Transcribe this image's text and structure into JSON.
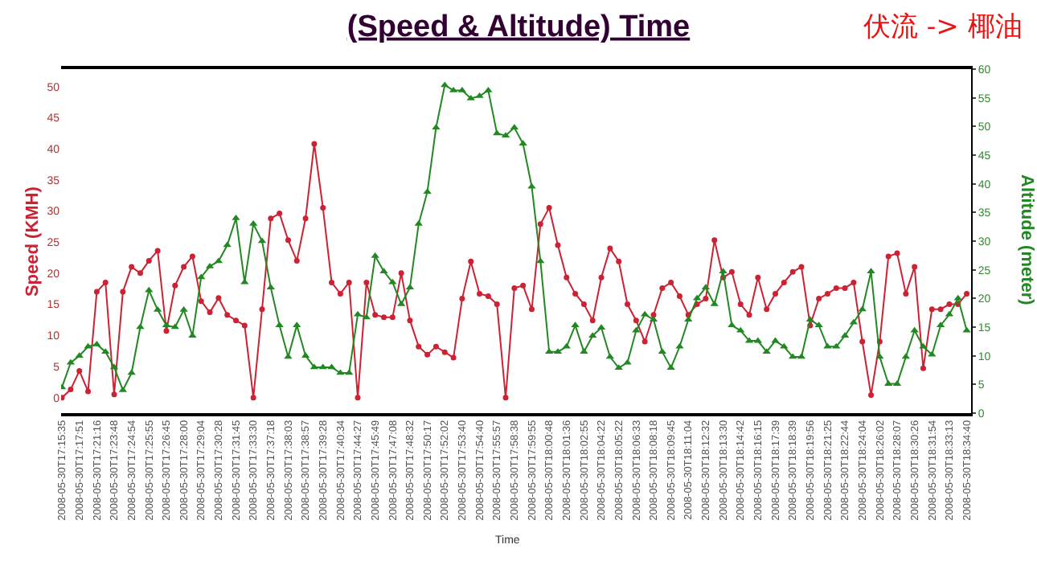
{
  "chart_data": {
    "type": "line",
    "title": "(Speed & Altitude) Time",
    "xlabel": "Time",
    "ylabel": "Speed (KMH)",
    "y2label": "Altitude (meter)",
    "annotations": [
      "伏流 -> 椰油"
    ],
    "categories": [
      "2008-05-30T17:15:35",
      null,
      "2008-05-30T17:17:51",
      null,
      "2008-05-30T17:21:16",
      null,
      "2008-05-30T17:23:48",
      null,
      "2008-05-30T17:24:54",
      null,
      "2008-05-30T17:25:55",
      null,
      "2008-05-30T17:26:45",
      null,
      "2008-05-30T17:28:00",
      null,
      "2008-05-30T17:29:04",
      null,
      "2008-05-30T17:30:28",
      null,
      "2008-05-30T17:31:45",
      null,
      "2008-05-30T17:33:30",
      null,
      "2008-05-30T17:37:18",
      null,
      "2008-05-30T17:38:03",
      null,
      "2008-05-30T17:38:57",
      null,
      "2008-05-30T17:39:28",
      null,
      "2008-05-30T17:40:34",
      null,
      "2008-05-30T17:44:27",
      null,
      "2008-05-30T17:45:49",
      null,
      "2008-05-30T17:47:08",
      null,
      "2008-05-30T17:48:32",
      null,
      "2008-05-30T17:50:17",
      null,
      "2008-05-30T17:52:02",
      null,
      "2008-05-30T17:53:40",
      null,
      "2008-05-30T17:54:40",
      null,
      "2008-05-30T17:55:57",
      null,
      "2008-05-30T17:58:38",
      null,
      "2008-05-30T17:59:55",
      null,
      "2008-05-30T18:00:48",
      null,
      "2008-05-30T18:01:36",
      null,
      "2008-05-30T18:02:55",
      null,
      "2008-05-30T18:04:22",
      null,
      "2008-05-30T18:05:22",
      null,
      "2008-05-30T18:06:33",
      null,
      "2008-05-30T18:08:18",
      null,
      "2008-05-30T18:09:45",
      null,
      "2008-05-30T18:11:04",
      null,
      "2008-05-30T18:12:32",
      null,
      "2008-05-30T18:13:30",
      null,
      "2008-05-30T18:14:42",
      null,
      "2008-05-30T18:16:15",
      null,
      "2008-05-30T18:17:39",
      null,
      "2008-05-30T18:18:39",
      null,
      "2008-05-30T18:19:56",
      null,
      "2008-05-30T18:21:25",
      null,
      "2008-05-30T18:22:44",
      null,
      "2008-05-30T18:24:04",
      null,
      "2008-05-30T18:26:02",
      null,
      "2008-05-30T18:28:07",
      null,
      "2008-05-30T18:30:26",
      null,
      "2008-05-30T18:31:54",
      null,
      "2008-05-30T18:33:13",
      null,
      "2008-05-30T18:34:40"
    ],
    "series": [
      {
        "color": "#cc2233",
        "marker": "circle",
        "values": [
          0,
          1.3,
          4.3,
          1,
          17,
          18.5,
          0.5,
          17,
          21,
          20,
          22,
          23.6,
          10.7,
          18,
          21,
          22.7,
          15.5,
          13.7,
          16,
          13.3,
          12.4,
          11.6,
          0,
          14.2,
          28.8,
          29.6,
          25.3,
          22,
          28.8,
          40.8,
          30.5,
          18.5,
          16.7,
          18.5,
          0,
          18.5,
          13.3,
          12.9,
          12.9,
          20,
          12.4,
          8.2,
          6.9,
          8.2,
          7.3,
          6.4,
          15.9,
          21.9,
          16.7,
          16.3,
          15,
          0,
          17.6,
          18,
          14.2,
          27.9,
          30.5,
          24.5,
          19.3,
          16.7,
          15,
          12.4,
          19.3,
          24,
          21.9,
          15,
          12.4,
          9,
          13.3,
          17.6,
          18.5,
          16.3,
          13.3,
          15,
          15.9,
          25.3,
          19.3,
          20.2,
          15,
          13.3,
          19.3,
          14.2,
          16.7,
          18.5,
          20.2,
          21,
          11.6,
          15.9,
          16.7,
          17.6,
          17.6,
          18.5,
          9,
          0.4,
          9,
          22.7,
          23.2,
          16.7,
          21,
          4.7,
          14.2,
          14.2,
          15,
          15,
          16.7
        ]
      },
      {
        "color": "#228822",
        "marker": "triangle",
        "axis": "y2",
        "values": [
          4.5,
          8.8,
          10,
          11.6,
          12,
          10.7,
          8,
          4,
          7,
          15,
          21.4,
          18,
          15.3,
          15,
          18,
          13.5,
          23.7,
          25.6,
          26.5,
          29.3,
          34,
          22.8,
          33,
          30,
          21.9,
          15.3,
          9.8,
          15.3,
          10,
          8,
          8,
          8,
          7,
          7,
          17.2,
          16.7,
          27.4,
          24.7,
          22.8,
          19,
          21.9,
          33,
          38.6,
          49.8,
          57.2,
          56.3,
          56.3,
          54.9,
          55.3,
          56.3,
          48.8,
          48.4,
          49.8,
          47,
          39.5,
          26.5,
          10.7,
          10.7,
          11.6,
          15.3,
          10.7,
          13.5,
          14.9,
          9.8,
          7.9,
          8.8,
          14.4,
          17.2,
          16.3,
          10.7,
          7.9,
          11.6,
          16.3,
          20,
          21.9,
          19,
          24.7,
          15.3,
          14.4,
          12.6,
          12.6,
          10.7,
          12.6,
          11.6,
          9.8,
          9.8,
          16.3,
          15.3,
          11.6,
          11.6,
          13.5,
          15.8,
          18.1,
          24.7,
          9.8,
          5.1,
          5.1,
          9.8,
          14.4,
          11.6,
          10.2,
          15.3,
          17.2,
          20,
          14.4
        ]
      }
    ],
    "ylim": [
      -2.5,
      52.8
    ],
    "yticks": [
      0,
      5,
      10,
      15,
      20,
      25,
      30,
      35,
      40,
      45,
      50
    ],
    "y2lim": [
      0,
      60
    ],
    "y2ticks": [
      0,
      5,
      10,
      15,
      20,
      25,
      30,
      35,
      40,
      45,
      50,
      55,
      60
    ],
    "line_style": "solid"
  }
}
